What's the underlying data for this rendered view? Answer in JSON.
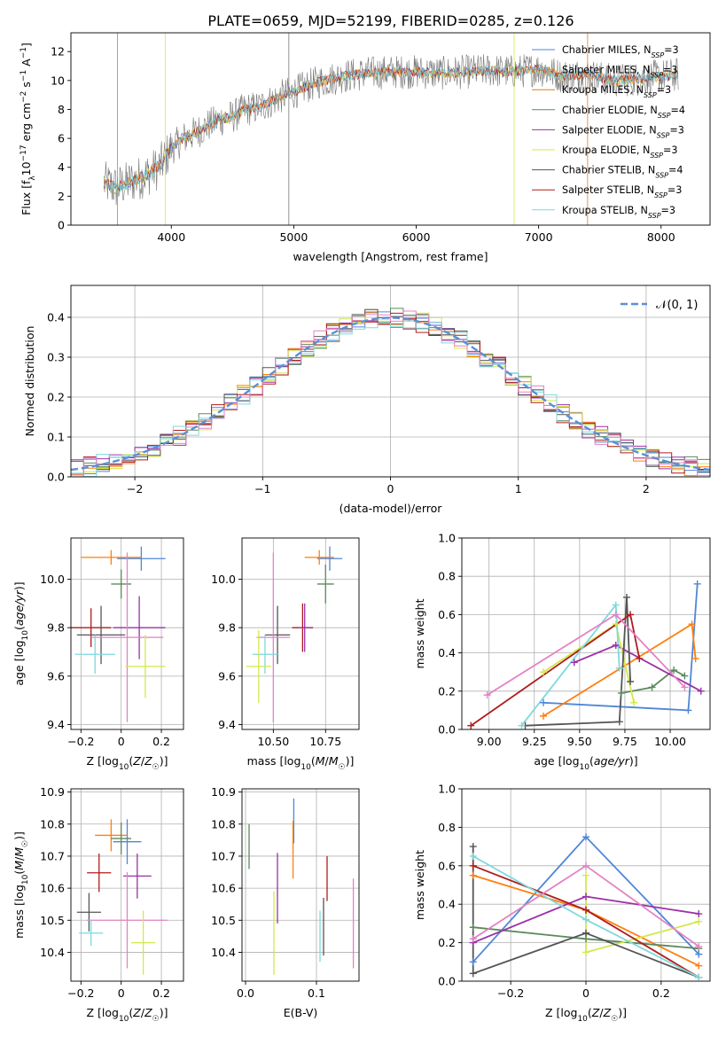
{
  "figure_title": "PLATE=0659, MJD=52199, FIBERID=0285, z=0.126",
  "colors": {
    "Chabrier MILES": "#4f86d9",
    "Salpeter MILES": "#ff7f0e",
    "Kroupa MILES": "#e07a1f",
    "Chabrier ELODIE": "#5a8a5a",
    "Salpeter ELODIE": "#9b30a8",
    "Kroupa ELODIE": "#d4e84a",
    "Chabrier STELIB": "#555555",
    "Salpeter STELIB": "#b01c1c",
    "Kroupa STELIB": "#7fd8dc",
    "pink": "#e383c2"
  },
  "chart_data": [
    {
      "id": "spectrum",
      "type": "line",
      "title": "PLATE=0659, MJD=52199, FIBERID=0285, z=0.126",
      "xlabel": "wavelength [Angstrom, rest frame]",
      "ylabel": "Flux [fλ10⁻¹⁷ erg cm⁻² s⁻¹ A⁻¹]",
      "xlim": [
        3180,
        8400
      ],
      "ylim": [
        0,
        13.3
      ],
      "xticks": [
        4000,
        5000,
        6000,
        7000,
        8000
      ],
      "yticks": [
        0,
        2,
        4,
        6,
        8,
        10,
        12
      ],
      "grid": false,
      "legend_position": "top-right",
      "legend": [
        {
          "name": "Chabrier MILES",
          "sub": "SSP",
          "n": "=3"
        },
        {
          "name": "Salpeter MILES",
          "sub": "SSP",
          "n": "=3"
        },
        {
          "name": "Kroupa MILES",
          "sub": "SSP",
          "n": "=3"
        },
        {
          "name": "Chabrier ELODIE",
          "sub": "SSP",
          "n": "=4"
        },
        {
          "name": "Salpeter ELODIE",
          "sub": "SSP",
          "n": "=3"
        },
        {
          "name": "Kroupa ELODIE",
          "sub": "SSP",
          "n": "=3"
        },
        {
          "name": "Chabrier STELIB",
          "sub": "SSP",
          "n": "=4"
        },
        {
          "name": "Salpeter STELIB",
          "sub": "SSP",
          "n": "=3"
        },
        {
          "name": "Kroupa STELIB",
          "sub": "SSP",
          "n": "=3"
        }
      ],
      "data_trend": {
        "x": [
          3450,
          3550,
          3700,
          3800,
          3900,
          4000,
          4100,
          4200,
          4300,
          4400,
          4500,
          4600,
          4700,
          4800,
          4900,
          5000,
          5200,
          5400,
          5600,
          5800,
          6000,
          6200,
          6400,
          6600,
          6800,
          7000,
          7200,
          7400,
          7600,
          7800,
          8000,
          8140
        ],
        "y": [
          2.9,
          2.6,
          3.1,
          3.5,
          4.0,
          5.3,
          6.0,
          6.4,
          6.9,
          7.3,
          7.5,
          8.0,
          8.1,
          8.5,
          8.9,
          9.2,
          9.9,
          10.3,
          10.5,
          10.6,
          10.6,
          10.5,
          10.6,
          10.7,
          10.6,
          10.8,
          10.3,
          10.4,
          10.0,
          10.1,
          10.3,
          10.4
        ]
      }
    },
    {
      "id": "residuals",
      "type": "histogram",
      "xlabel": "(data-model)/error",
      "ylabel": "Normed distribution",
      "xlim": [
        -2.5,
        2.5
      ],
      "ylim": [
        0,
        0.48
      ],
      "xticks": [
        -2,
        -1,
        0,
        1,
        2
      ],
      "yticks": [
        0.0,
        0.1,
        0.2,
        0.3,
        0.4
      ],
      "grid": true,
      "legend_position": "top-right",
      "legend": [
        {
          "name": "𝒩(0, 1)"
        }
      ],
      "bin_width": 0.1
    },
    {
      "id": "age_vs_Z",
      "type": "scatter",
      "xlabel": "Z [log10(Z/Z☉)]",
      "ylabel": "age  [log10(age/yr)]",
      "xlim": [
        -0.25,
        0.31
      ],
      "ylim": [
        9.38,
        10.17
      ],
      "xticks": [
        -0.2,
        0.0,
        0.2
      ],
      "yticks": [
        9.4,
        9.6,
        9.8,
        10.0
      ],
      "grid": true,
      "points": [
        {
          "color": "Chabrier MILES",
          "x": 0.1,
          "y": 10.085,
          "xerr": 0.12,
          "yerr": 0.05
        },
        {
          "color": "Salpeter MILES",
          "x": -0.05,
          "y": 10.09,
          "xerr": 0.15,
          "yerr": 0.03
        },
        {
          "color": "Chabrier ELODIE",
          "x": 0.0,
          "y": 9.98,
          "xerr": 0.05,
          "yerr": 0.06
        },
        {
          "color": "Salpeter STELIB",
          "x": -0.15,
          "y": 9.8,
          "xerr": 0.1,
          "yerr": 0.08
        },
        {
          "color": "Salpeter ELODIE",
          "x": 0.09,
          "y": 9.8,
          "xerr": 0.13,
          "yerr": 0.13
        },
        {
          "color": "Chabrier STELIB",
          "x": -0.1,
          "y": 9.77,
          "xerr": 0.12,
          "yerr": 0.12
        },
        {
          "color": "pink",
          "x": 0.03,
          "y": 9.76,
          "xerr": 0.18,
          "yerr": 0.35
        },
        {
          "color": "Kroupa STELIB",
          "x": -0.13,
          "y": 9.69,
          "xerr": 0.1,
          "yerr": 0.08
        },
        {
          "color": "Kroupa ELODIE",
          "x": 0.12,
          "y": 9.64,
          "xerr": 0.1,
          "yerr": 0.13
        }
      ]
    },
    {
      "id": "age_vs_mass",
      "type": "scatter",
      "xlabel": "mass [log10(M/M☉)]",
      "xlim": [
        10.35,
        10.91
      ],
      "ylim": [
        9.38,
        10.17
      ],
      "xticks": [
        10.5,
        10.75
      ],
      "xtick_labels": [
        "10.50",
        "10.75"
      ],
      "yticks": [
        9.4,
        9.6,
        9.8,
        10.0
      ],
      "grid": true,
      "points": [
        {
          "color": "Chabrier MILES",
          "x": 10.77,
          "y": 10.085,
          "xerr": 0.06,
          "yerr": 0.05
        },
        {
          "color": "Salpeter MILES",
          "x": 10.72,
          "y": 10.09,
          "xerr": 0.07,
          "yerr": 0.03
        },
        {
          "color": "Chabrier ELODIE",
          "x": 10.75,
          "y": 9.98,
          "xerr": 0.04,
          "yerr": 0.08
        },
        {
          "color": "Salpeter STELIB",
          "x": 10.64,
          "y": 9.8,
          "xerr": 0.05,
          "yerr": 0.1
        },
        {
          "color": "Salpeter ELODIE",
          "x": 10.65,
          "y": 9.8,
          "xerr": 0.03,
          "yerr": 0.1
        },
        {
          "color": "Chabrier STELIB",
          "x": 10.52,
          "y": 9.77,
          "xerr": 0.06,
          "yerr": 0.12
        },
        {
          "color": "pink",
          "x": 10.5,
          "y": 9.76,
          "xerr": 0.08,
          "yerr": 0.35
        },
        {
          "color": "Kroupa STELIB",
          "x": 10.46,
          "y": 9.69,
          "xerr": 0.06,
          "yerr": 0.08
        },
        {
          "color": "Kroupa ELODIE",
          "x": 10.43,
          "y": 9.64,
          "xerr": 0.06,
          "yerr": 0.15
        }
      ]
    },
    {
      "id": "massweight_vs_age",
      "type": "line",
      "xlabel": "age  [log10(age/yr)]",
      "ylabel": "mass weight",
      "xlim": [
        8.85,
        10.22
      ],
      "ylim": [
        0,
        1.0
      ],
      "xticks": [
        9.0,
        9.25,
        9.5,
        9.75,
        10.0
      ],
      "xtick_labels": [
        "9.00",
        "9.25",
        "9.50",
        "9.75",
        "10.00"
      ],
      "yticks": [
        0.0,
        0.2,
        0.4,
        0.6,
        0.8,
        1.0
      ],
      "grid": true,
      "series": [
        {
          "color": "Chabrier MILES",
          "x": [
            9.3,
            10.1,
            10.15
          ],
          "y": [
            0.14,
            0.1,
            0.76
          ]
        },
        {
          "color": "Salpeter MILES",
          "x": [
            9.3,
            10.12,
            10.14
          ],
          "y": [
            0.07,
            0.55,
            0.37
          ]
        },
        {
          "color": "Chabrier ELODIE",
          "x": [
            9.73,
            9.9,
            10.02,
            10.08
          ],
          "y": [
            0.19,
            0.22,
            0.31,
            0.28
          ]
        },
        {
          "color": "Salpeter ELODIE",
          "x": [
            9.47,
            9.7,
            10.17
          ],
          "y": [
            0.35,
            0.44,
            0.2
          ]
        },
        {
          "color": "Kroupa ELODIE",
          "x": [
            9.3,
            9.7,
            9.8
          ],
          "y": [
            0.3,
            0.55,
            0.14
          ]
        },
        {
          "color": "Chabrier STELIB",
          "x": [
            9.2,
            9.72,
            9.76,
            9.78
          ],
          "y": [
            0.02,
            0.04,
            0.69,
            0.25
          ]
        },
        {
          "color": "Salpeter STELIB",
          "x": [
            8.9,
            9.78,
            9.83
          ],
          "y": [
            0.02,
            0.6,
            0.37
          ]
        },
        {
          "color": "Kroupa STELIB",
          "x": [
            9.18,
            9.7,
            9.72
          ],
          "y": [
            0.02,
            0.65,
            0.32
          ]
        },
        {
          "color": "pink",
          "x": [
            8.99,
            9.7,
            10.08
          ],
          "y": [
            0.18,
            0.6,
            0.22
          ]
        }
      ]
    },
    {
      "id": "mass_vs_Z",
      "type": "scatter",
      "xlabel": "Z [log10(Z/Z☉)]",
      "ylabel": "mass [log10(M/M☉)]",
      "xlim": [
        -0.25,
        0.31
      ],
      "ylim": [
        10.31,
        10.91
      ],
      "xticks": [
        -0.2,
        0.0,
        0.2
      ],
      "yticks": [
        10.4,
        10.5,
        10.6,
        10.7,
        10.8,
        10.9
      ],
      "grid": true,
      "points": [
        {
          "color": "Chabrier MILES",
          "x": 0.03,
          "y": 10.745,
          "xerr": 0.07,
          "yerr": 0.07
        },
        {
          "color": "Salpeter MILES",
          "x": -0.05,
          "y": 10.765,
          "xerr": 0.08,
          "yerr": 0.05
        },
        {
          "color": "Chabrier ELODIE",
          "x": 0.0,
          "y": 10.755,
          "xerr": 0.05,
          "yerr": 0.05
        },
        {
          "color": "Salpeter STELIB",
          "x": -0.11,
          "y": 10.648,
          "xerr": 0.06,
          "yerr": 0.06
        },
        {
          "color": "Salpeter ELODIE",
          "x": 0.08,
          "y": 10.638,
          "xerr": 0.07,
          "yerr": 0.07
        },
        {
          "color": "Chabrier STELIB",
          "x": -0.16,
          "y": 10.525,
          "xerr": 0.06,
          "yerr": 0.06
        },
        {
          "color": "pink",
          "x": 0.03,
          "y": 10.5,
          "xerr": 0.2,
          "yerr": 0.15
        },
        {
          "color": "Kroupa STELIB",
          "x": -0.15,
          "y": 10.46,
          "xerr": 0.06,
          "yerr": 0.04
        },
        {
          "color": "Kroupa ELODIE",
          "x": 0.11,
          "y": 10.43,
          "xerr": 0.06,
          "yerr": 0.1
        }
      ]
    },
    {
      "id": "mass_vs_EBV",
      "type": "scatter",
      "xlabel": "E(B-V)",
      "xlim": [
        -0.005,
        0.16
      ],
      "ylim": [
        10.31,
        10.91
      ],
      "xticks": [
        0.0,
        0.1
      ],
      "xtick_labels": [
        "0.0",
        "0.1"
      ],
      "yticks": [
        10.4,
        10.5,
        10.6,
        10.7,
        10.8,
        10.9
      ],
      "grid": true,
      "points": [
        {
          "color": "Chabrier MILES",
          "x": 0.068,
          "y": 10.81,
          "xerr": 0,
          "yerr": 0.07
        },
        {
          "color": "Salpeter MILES",
          "x": 0.067,
          "y": 10.72,
          "xerr": 0,
          "yerr": 0.09
        },
        {
          "color": "Chabrier ELODIE",
          "x": 0.005,
          "y": 10.73,
          "xerr": 0,
          "yerr": 0.07
        },
        {
          "color": "Salpeter STELIB",
          "x": 0.115,
          "y": 10.63,
          "xerr": 0,
          "yerr": 0.07
        },
        {
          "color": "Salpeter ELODIE",
          "x": 0.045,
          "y": 10.6,
          "xerr": 0,
          "yerr": 0.11
        },
        {
          "color": "Chabrier STELIB",
          "x": 0.11,
          "y": 10.48,
          "xerr": 0,
          "yerr": 0.09
        },
        {
          "color": "pink",
          "x": 0.152,
          "y": 10.49,
          "xerr": 0,
          "yerr": 0.14
        },
        {
          "color": "Kroupa STELIB",
          "x": 0.105,
          "y": 10.45,
          "xerr": 0,
          "yerr": 0.08
        },
        {
          "color": "Kroupa ELODIE",
          "x": 0.04,
          "y": 10.46,
          "xerr": 0,
          "yerr": 0.13
        }
      ]
    },
    {
      "id": "massweight_vs_Z",
      "type": "line",
      "xlabel": "Z [log10(Z/Z☉)]",
      "ylabel": "mass weight",
      "xlim": [
        -0.33,
        0.33
      ],
      "ylim": [
        0,
        1.0
      ],
      "xticks": [
        -0.2,
        0.0,
        0.2
      ],
      "yticks": [
        0.0,
        0.2,
        0.4,
        0.6,
        0.8,
        1.0
      ],
      "grid": true,
      "series": [
        {
          "color": "Chabrier MILES",
          "x": [
            -0.3,
            0.0,
            0.3
          ],
          "y": [
            0.1,
            0.75,
            0.14
          ]
        },
        {
          "color": "Salpeter MILES",
          "x": [
            -0.3,
            0.0,
            0.3
          ],
          "y": [
            0.55,
            0.37,
            0.08
          ]
        },
        {
          "color": "Chabrier ELODIE",
          "x": [
            -0.3,
            0.0,
            0.3
          ],
          "y": [
            0.28,
            0.22,
            0.17
          ]
        },
        {
          "color": "Salpeter ELODIE",
          "x": [
            -0.3,
            0.0,
            0.3
          ],
          "y": [
            0.2,
            0.44,
            0.35
          ]
        },
        {
          "color": "Kroupa ELODIE",
          "x": [
            0.0,
            0.0,
            0.3
          ],
          "y": [
            0.55,
            0.15,
            0.31
          ]
        },
        {
          "color": "Chabrier STELIB",
          "x": [
            -0.3,
            -0.3,
            0.0,
            0.3
          ],
          "y": [
            0.7,
            0.04,
            0.25,
            0.02
          ]
        },
        {
          "color": "Salpeter STELIB",
          "x": [
            -0.3,
            0.0,
            0.3
          ],
          "y": [
            0.6,
            0.37,
            0.02
          ]
        },
        {
          "color": "Kroupa STELIB",
          "x": [
            -0.3,
            0.0,
            0.3
          ],
          "y": [
            0.65,
            0.32,
            0.02
          ]
        },
        {
          "color": "pink",
          "x": [
            -0.3,
            0.0,
            0.3
          ],
          "y": [
            0.22,
            0.6,
            0.18
          ]
        }
      ]
    }
  ]
}
